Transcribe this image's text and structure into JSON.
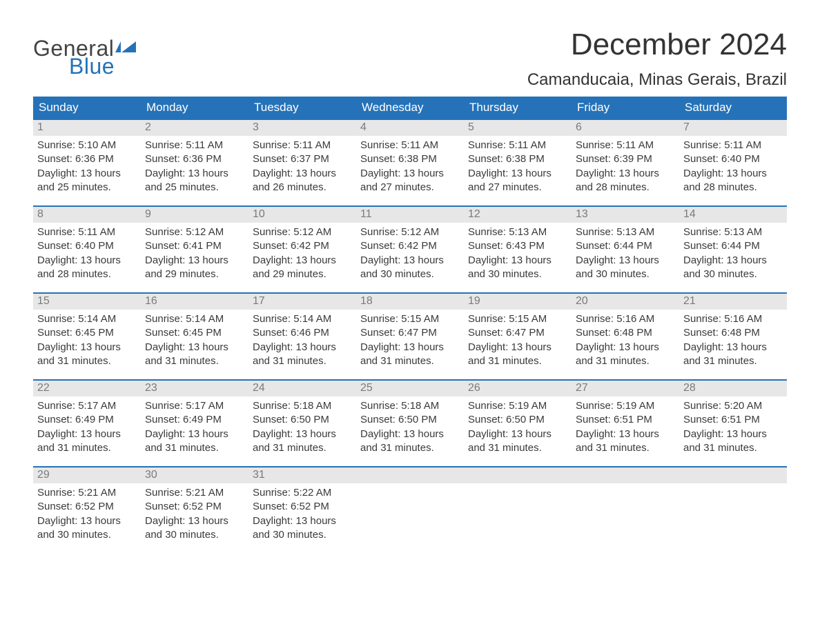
{
  "brand": {
    "word1": "General",
    "word2": "Blue"
  },
  "title": "December 2024",
  "location": "Camanducaia, Minas Gerais, Brazil",
  "colors": {
    "header_bg": "#2572b8",
    "header_text": "#ffffff",
    "daynum_bg": "#e7e7e7",
    "daynum_text": "#7a7a7a",
    "body_text": "#3a3a3a",
    "rule": "#2572b8",
    "page_bg": "#ffffff",
    "logo_blue": "#2572b8",
    "logo_gray": "#444444"
  },
  "typography": {
    "title_fontsize": 44,
    "location_fontsize": 24,
    "dayhead_fontsize": 17,
    "daynum_fontsize": 16,
    "body_fontsize": 15,
    "font_family": "Arial"
  },
  "day_headers": [
    "Sunday",
    "Monday",
    "Tuesday",
    "Wednesday",
    "Thursday",
    "Friday",
    "Saturday"
  ],
  "weeks": [
    [
      {
        "n": "1",
        "sr": "Sunrise: 5:10 AM",
        "ss": "Sunset: 6:36 PM",
        "d1": "Daylight: 13 hours",
        "d2": "and 25 minutes."
      },
      {
        "n": "2",
        "sr": "Sunrise: 5:11 AM",
        "ss": "Sunset: 6:36 PM",
        "d1": "Daylight: 13 hours",
        "d2": "and 25 minutes."
      },
      {
        "n": "3",
        "sr": "Sunrise: 5:11 AM",
        "ss": "Sunset: 6:37 PM",
        "d1": "Daylight: 13 hours",
        "d2": "and 26 minutes."
      },
      {
        "n": "4",
        "sr": "Sunrise: 5:11 AM",
        "ss": "Sunset: 6:38 PM",
        "d1": "Daylight: 13 hours",
        "d2": "and 27 minutes."
      },
      {
        "n": "5",
        "sr": "Sunrise: 5:11 AM",
        "ss": "Sunset: 6:38 PM",
        "d1": "Daylight: 13 hours",
        "d2": "and 27 minutes."
      },
      {
        "n": "6",
        "sr": "Sunrise: 5:11 AM",
        "ss": "Sunset: 6:39 PM",
        "d1": "Daylight: 13 hours",
        "d2": "and 28 minutes."
      },
      {
        "n": "7",
        "sr": "Sunrise: 5:11 AM",
        "ss": "Sunset: 6:40 PM",
        "d1": "Daylight: 13 hours",
        "d2": "and 28 minutes."
      }
    ],
    [
      {
        "n": "8",
        "sr": "Sunrise: 5:11 AM",
        "ss": "Sunset: 6:40 PM",
        "d1": "Daylight: 13 hours",
        "d2": "and 28 minutes."
      },
      {
        "n": "9",
        "sr": "Sunrise: 5:12 AM",
        "ss": "Sunset: 6:41 PM",
        "d1": "Daylight: 13 hours",
        "d2": "and 29 minutes."
      },
      {
        "n": "10",
        "sr": "Sunrise: 5:12 AM",
        "ss": "Sunset: 6:42 PM",
        "d1": "Daylight: 13 hours",
        "d2": "and 29 minutes."
      },
      {
        "n": "11",
        "sr": "Sunrise: 5:12 AM",
        "ss": "Sunset: 6:42 PM",
        "d1": "Daylight: 13 hours",
        "d2": "and 30 minutes."
      },
      {
        "n": "12",
        "sr": "Sunrise: 5:13 AM",
        "ss": "Sunset: 6:43 PM",
        "d1": "Daylight: 13 hours",
        "d2": "and 30 minutes."
      },
      {
        "n": "13",
        "sr": "Sunrise: 5:13 AM",
        "ss": "Sunset: 6:44 PM",
        "d1": "Daylight: 13 hours",
        "d2": "and 30 minutes."
      },
      {
        "n": "14",
        "sr": "Sunrise: 5:13 AM",
        "ss": "Sunset: 6:44 PM",
        "d1": "Daylight: 13 hours",
        "d2": "and 30 minutes."
      }
    ],
    [
      {
        "n": "15",
        "sr": "Sunrise: 5:14 AM",
        "ss": "Sunset: 6:45 PM",
        "d1": "Daylight: 13 hours",
        "d2": "and 31 minutes."
      },
      {
        "n": "16",
        "sr": "Sunrise: 5:14 AM",
        "ss": "Sunset: 6:45 PM",
        "d1": "Daylight: 13 hours",
        "d2": "and 31 minutes."
      },
      {
        "n": "17",
        "sr": "Sunrise: 5:14 AM",
        "ss": "Sunset: 6:46 PM",
        "d1": "Daylight: 13 hours",
        "d2": "and 31 minutes."
      },
      {
        "n": "18",
        "sr": "Sunrise: 5:15 AM",
        "ss": "Sunset: 6:47 PM",
        "d1": "Daylight: 13 hours",
        "d2": "and 31 minutes."
      },
      {
        "n": "19",
        "sr": "Sunrise: 5:15 AM",
        "ss": "Sunset: 6:47 PM",
        "d1": "Daylight: 13 hours",
        "d2": "and 31 minutes."
      },
      {
        "n": "20",
        "sr": "Sunrise: 5:16 AM",
        "ss": "Sunset: 6:48 PM",
        "d1": "Daylight: 13 hours",
        "d2": "and 31 minutes."
      },
      {
        "n": "21",
        "sr": "Sunrise: 5:16 AM",
        "ss": "Sunset: 6:48 PM",
        "d1": "Daylight: 13 hours",
        "d2": "and 31 minutes."
      }
    ],
    [
      {
        "n": "22",
        "sr": "Sunrise: 5:17 AM",
        "ss": "Sunset: 6:49 PM",
        "d1": "Daylight: 13 hours",
        "d2": "and 31 minutes."
      },
      {
        "n": "23",
        "sr": "Sunrise: 5:17 AM",
        "ss": "Sunset: 6:49 PM",
        "d1": "Daylight: 13 hours",
        "d2": "and 31 minutes."
      },
      {
        "n": "24",
        "sr": "Sunrise: 5:18 AM",
        "ss": "Sunset: 6:50 PM",
        "d1": "Daylight: 13 hours",
        "d2": "and 31 minutes."
      },
      {
        "n": "25",
        "sr": "Sunrise: 5:18 AM",
        "ss": "Sunset: 6:50 PM",
        "d1": "Daylight: 13 hours",
        "d2": "and 31 minutes."
      },
      {
        "n": "26",
        "sr": "Sunrise: 5:19 AM",
        "ss": "Sunset: 6:50 PM",
        "d1": "Daylight: 13 hours",
        "d2": "and 31 minutes."
      },
      {
        "n": "27",
        "sr": "Sunrise: 5:19 AM",
        "ss": "Sunset: 6:51 PM",
        "d1": "Daylight: 13 hours",
        "d2": "and 31 minutes."
      },
      {
        "n": "28",
        "sr": "Sunrise: 5:20 AM",
        "ss": "Sunset: 6:51 PM",
        "d1": "Daylight: 13 hours",
        "d2": "and 31 minutes."
      }
    ],
    [
      {
        "n": "29",
        "sr": "Sunrise: 5:21 AM",
        "ss": "Sunset: 6:52 PM",
        "d1": "Daylight: 13 hours",
        "d2": "and 30 minutes."
      },
      {
        "n": "30",
        "sr": "Sunrise: 5:21 AM",
        "ss": "Sunset: 6:52 PM",
        "d1": "Daylight: 13 hours",
        "d2": "and 30 minutes."
      },
      {
        "n": "31",
        "sr": "Sunrise: 5:22 AM",
        "ss": "Sunset: 6:52 PM",
        "d1": "Daylight: 13 hours",
        "d2": "and 30 minutes."
      },
      {
        "empty": true
      },
      {
        "empty": true
      },
      {
        "empty": true
      },
      {
        "empty": true
      }
    ]
  ]
}
